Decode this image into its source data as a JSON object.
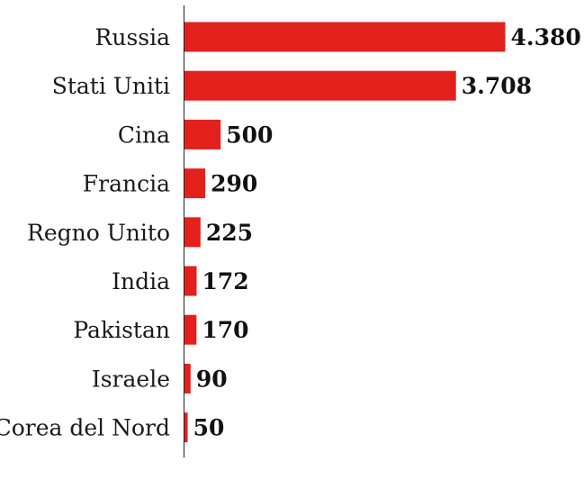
{
  "chart_data": {
    "type": "bar",
    "orientation": "horizontal",
    "categories": [
      "Russia",
      "Stati Uniti",
      "Cina",
      "Francia",
      "Regno Unito",
      "India",
      "Pakistan",
      "Israele",
      "Corea del Nord"
    ],
    "values": [
      4380,
      3708,
      500,
      290,
      225,
      172,
      170,
      90,
      50
    ],
    "value_labels": [
      "4.380",
      "3.708",
      "500",
      "290",
      "225",
      "172",
      "170",
      "90",
      "50"
    ],
    "bar_color": "#e3211c",
    "grid": false,
    "legend": "none",
    "xlim": [
      0,
      4380
    ]
  }
}
